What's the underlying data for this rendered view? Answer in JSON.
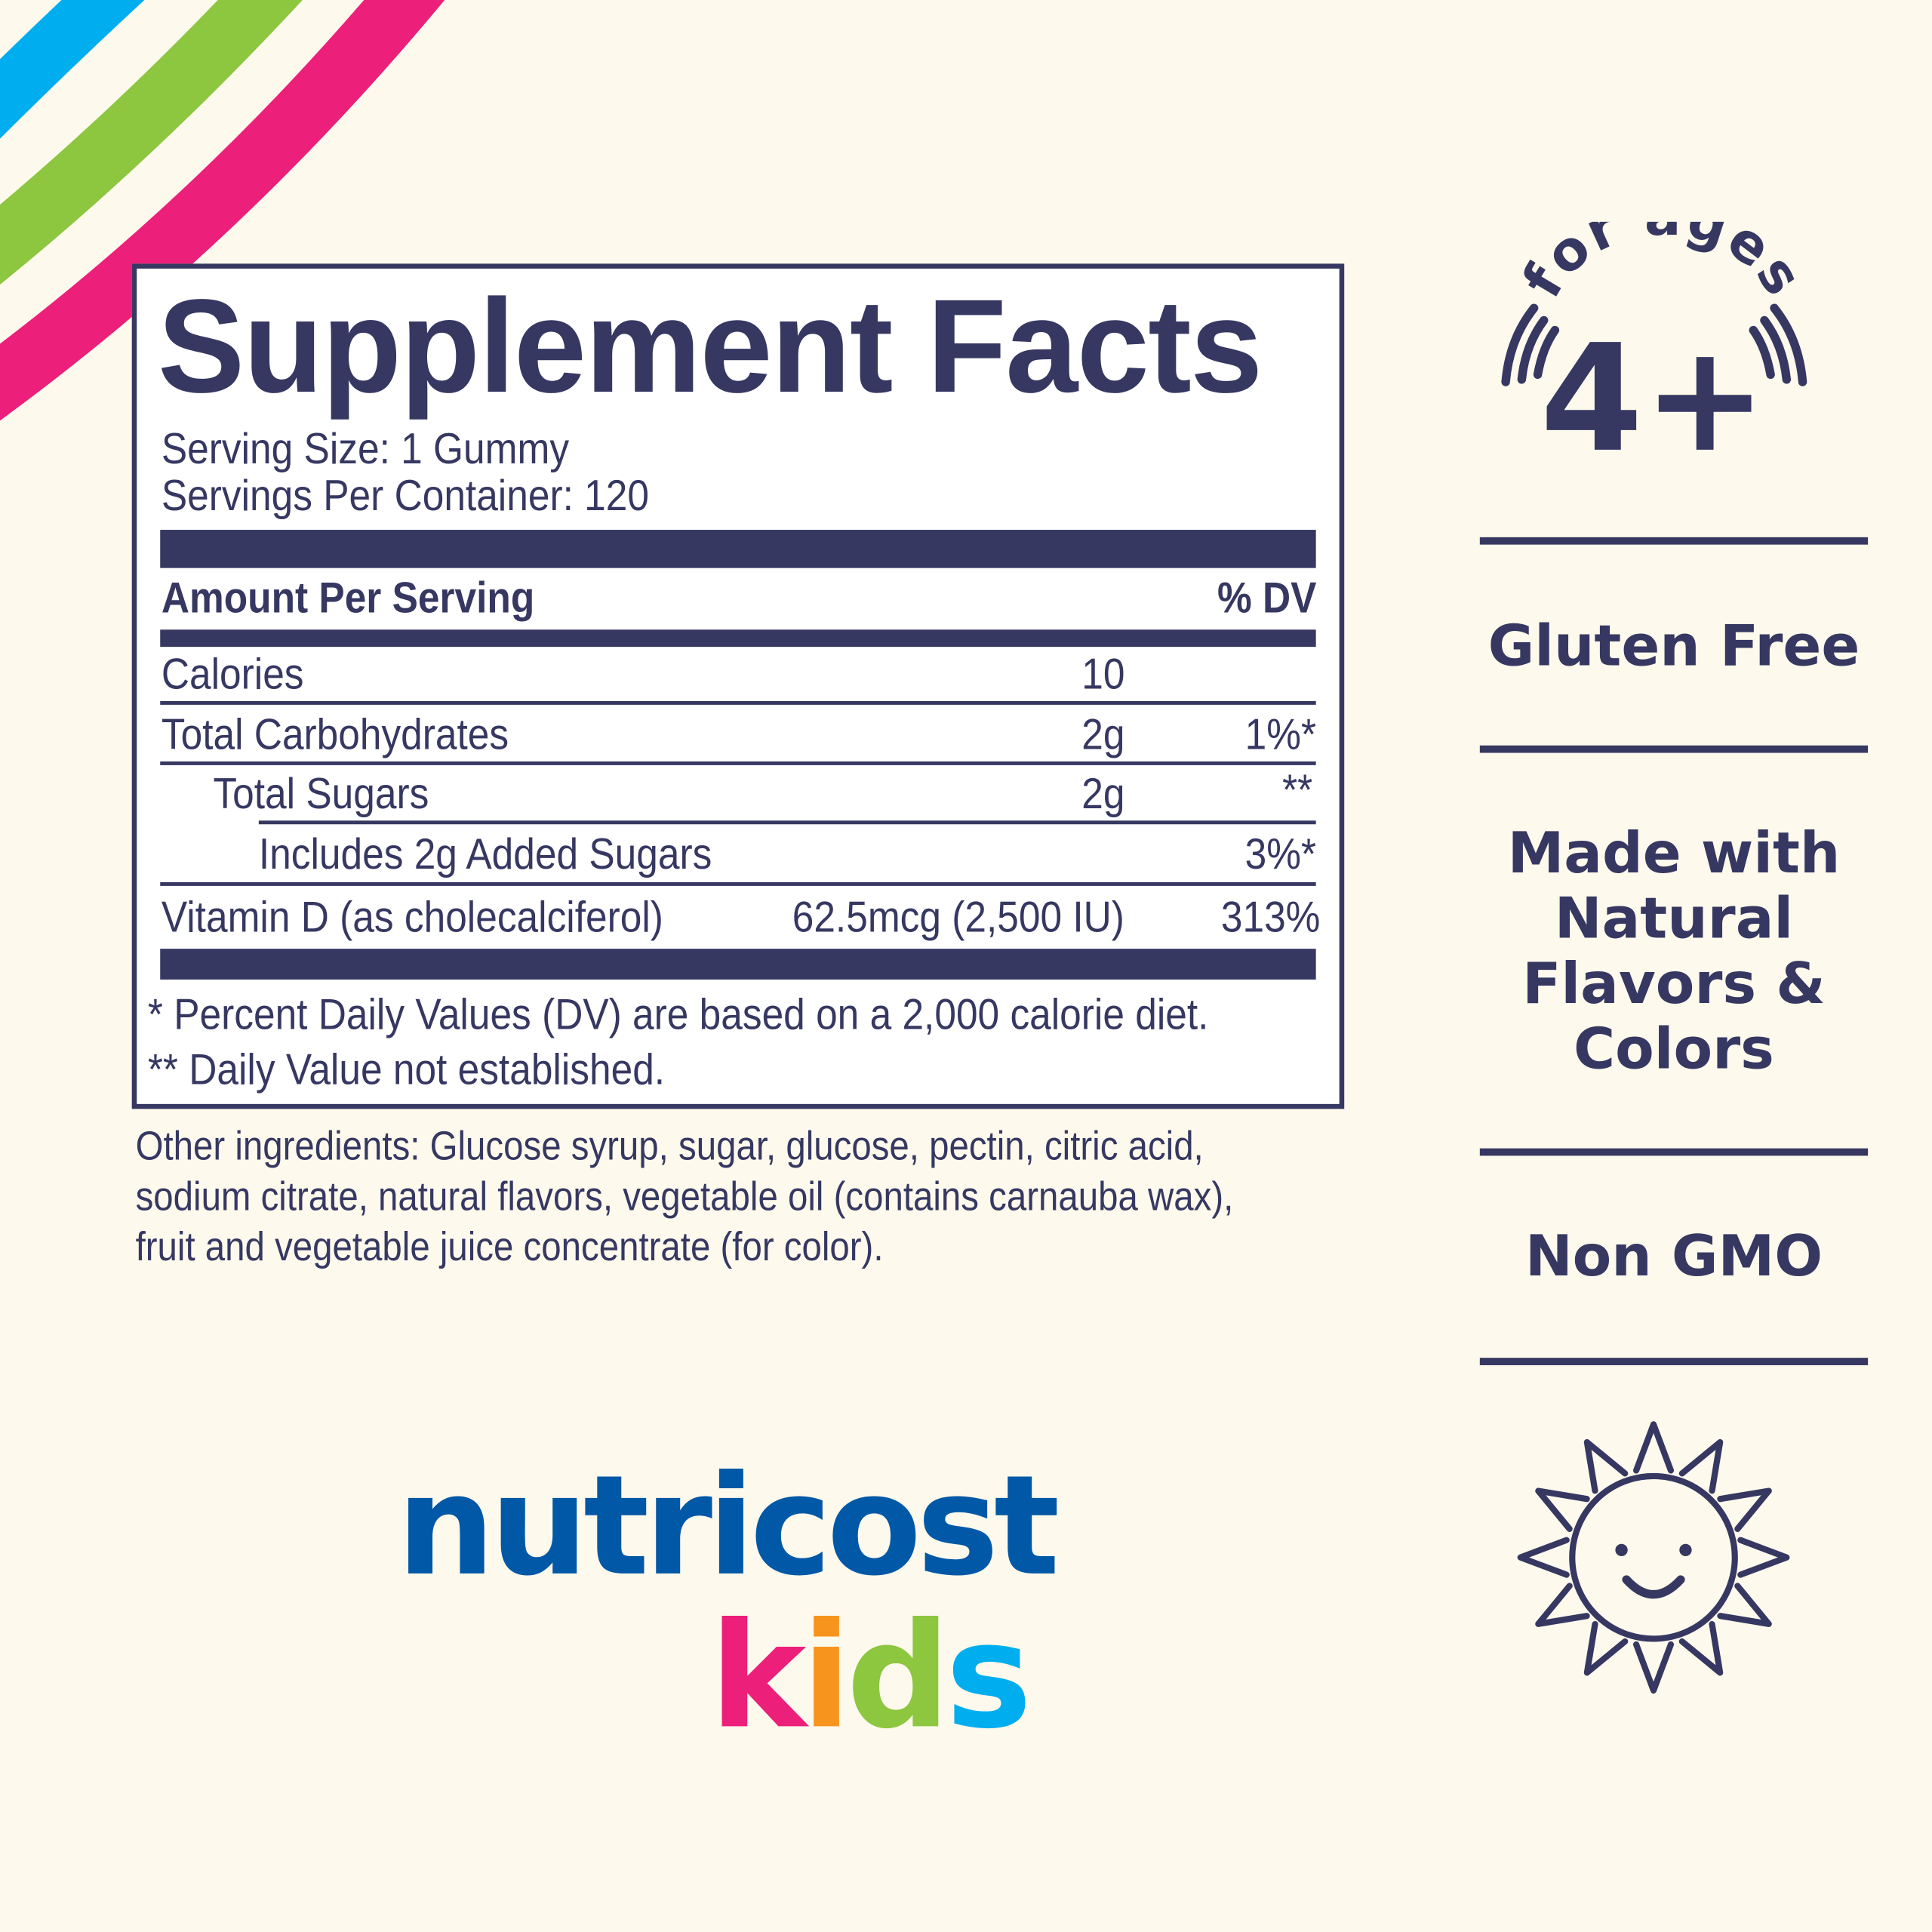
{
  "colors": {
    "navy": "#363862",
    "background": "#fdf9ec",
    "stripe_blue": "#00aeef",
    "stripe_green": "#8dc63f",
    "stripe_pink": "#ec1f7a",
    "brand_blue": "#0058a6",
    "kids_k": "#ec1f7a",
    "kids_i": "#f7941d",
    "kids_d": "#8dc63f",
    "kids_s": "#00aeef"
  },
  "facts": {
    "title": "Supplement Facts",
    "serving_size": "Serving Size: 1 Gummy",
    "servings_per_container": "Servings Per Container: 120",
    "amount_header": "Amount Per Serving",
    "dv_header": "% DV",
    "rows": [
      {
        "name": "Calories",
        "amount": "10",
        "dv": ""
      },
      {
        "name": "Total Carbohydrates",
        "amount": "2g",
        "dv": "1%*"
      },
      {
        "name": "Total Sugars",
        "amount": "2g",
        "dv": "**"
      },
      {
        "name": "Includes 2g Added Sugars",
        "amount": "",
        "dv": "3%*"
      },
      {
        "name": "Vitamin D (as cholecalciferol)",
        "amount": "62.5mcg (2,500 IU)",
        "dv": "313%"
      }
    ],
    "footnote_1": "* Percent Daily Values (DV) are based on a 2,000 calorie diet.",
    "footnote_2": "** Daily Value not established."
  },
  "ingredients": [
    "Other ingredients: Glucose syrup, sugar, glucose, pectin, citric acid,",
    "sodium citrate, natural flavors, vegetable oil (contains carnauba wax),",
    "fruit and vegetable juice concentrate (for color)."
  ],
  "age_badge": {
    "arc_text": "for ages",
    "age": "4+"
  },
  "claims": [
    "Gluten Free",
    [
      "Made with",
      "Natural",
      "Flavors &",
      "Colors"
    ],
    "Non GMO"
  ],
  "logo": {
    "brand": "nutricost",
    "sub": [
      "k",
      "i",
      "d",
      "s"
    ]
  },
  "icons": {
    "sun": "smiling-sun-icon"
  }
}
